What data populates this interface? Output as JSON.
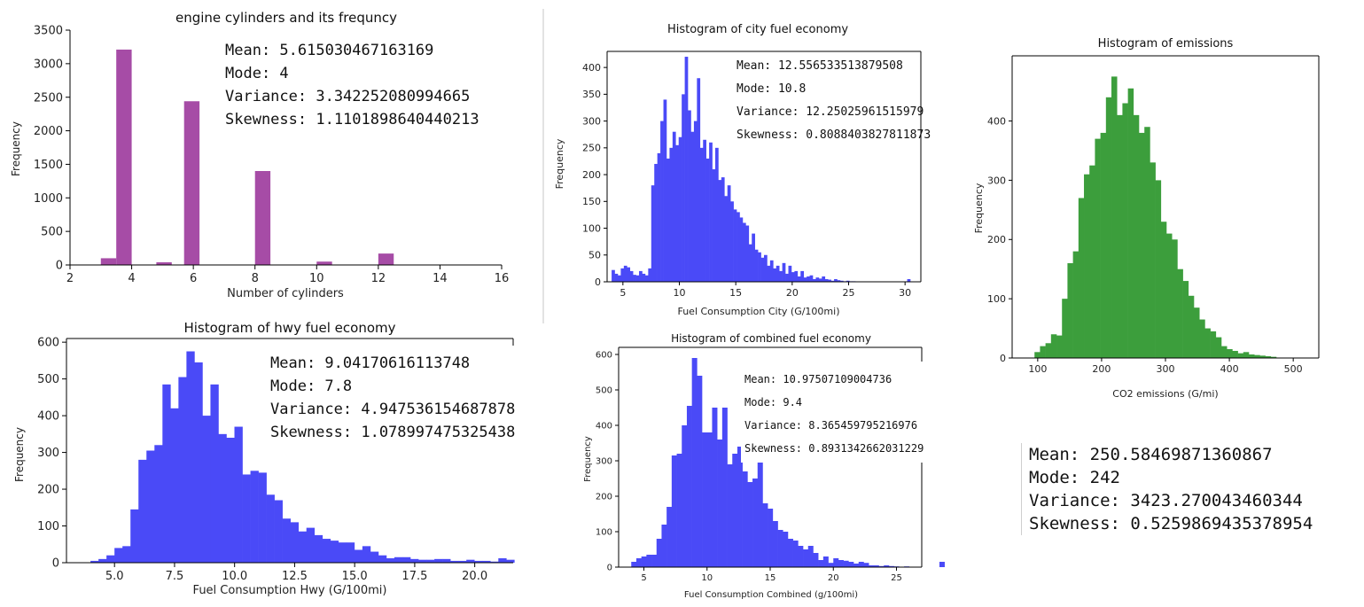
{
  "chart_data": [
    {
      "id": "cyl",
      "type": "bar",
      "title": "engine cylinders and its frequncy",
      "xlabel": "Number of cylinders",
      "ylabel": "Frequency",
      "xlim": [
        2,
        16
      ],
      "ylim": [
        0,
        3500
      ],
      "xticks": [
        2,
        4,
        6,
        8,
        10,
        12,
        14,
        16
      ],
      "yticks": [
        0,
        500,
        1000,
        1500,
        2000,
        2500,
        3000,
        3500
      ],
      "color": "#a64ca6",
      "bin_width": 0.5,
      "bars": [
        {
          "x": 3,
          "value": 100
        },
        {
          "x": 3.5,
          "value": 3210
        },
        {
          "x": 4.8,
          "value": 40
        },
        {
          "x": 5.7,
          "value": 2440
        },
        {
          "x": 8,
          "value": 1400
        },
        {
          "x": 10,
          "value": 50
        },
        {
          "x": 12,
          "value": 170
        }
      ],
      "stats": [
        "Mean: 5.615030467163169",
        "Mode: 4",
        "Variance: 3.342252080994665",
        "Skewness: 1.1101898640440213"
      ]
    },
    {
      "id": "city",
      "type": "bar",
      "title": "Histogram of city fuel economy",
      "xlabel": "Fuel Consumption City (G/100mi)",
      "ylabel": "Frequency",
      "xlim": [
        3.6,
        31.4
      ],
      "ylim": [
        0,
        430
      ],
      "xticks": [
        5,
        10,
        15,
        20,
        25,
        30
      ],
      "yticks": [
        0,
        50,
        100,
        150,
        200,
        250,
        300,
        350,
        400
      ],
      "color": "#4a4af7",
      "x_start": 4.0,
      "bin_width": 0.27,
      "values": [
        22,
        15,
        12,
        25,
        30,
        27,
        20,
        13,
        12,
        20,
        15,
        12,
        25,
        180,
        220,
        240,
        300,
        340,
        230,
        250,
        280,
        255,
        270,
        350,
        420,
        320,
        280,
        300,
        380,
        250,
        265,
        230,
        260,
        210,
        250,
        190,
        195,
        160,
        180,
        150,
        135,
        130,
        120,
        110,
        105,
        70,
        90,
        60,
        55,
        45,
        50,
        30,
        40,
        25,
        30,
        20,
        35,
        15,
        30,
        18,
        20,
        10,
        20,
        8,
        10,
        12,
        5,
        8,
        6,
        10,
        5,
        4,
        2,
        5,
        3,
        2,
        1,
        2,
        1,
        1,
        0,
        0,
        0,
        0,
        0,
        0,
        0,
        0,
        0,
        0,
        0,
        0,
        0,
        0,
        0,
        0,
        0,
        5,
        0,
        0
      ],
      "stats": [
        "Mean: 12.556533513879508",
        "Mode: 10.8",
        "Variance: 12.25025961515979",
        "Skewness: 0.8088403827811873"
      ]
    },
    {
      "id": "co2",
      "type": "bar",
      "title": "Histogram of emissions",
      "xlabel": "CO2 emissions (G/mi)",
      "ylabel": "Frequency",
      "xlim": [
        60,
        540
      ],
      "ylim": [
        0,
        510
      ],
      "xticks": [
        100,
        200,
        300,
        400,
        500
      ],
      "yticks": [
        0,
        100,
        200,
        300,
        400
      ],
      "color": "#3c9e3c",
      "x_start": 95,
      "bin_width": 8.6,
      "values": [
        10,
        20,
        25,
        40,
        38,
        100,
        160,
        180,
        270,
        310,
        325,
        370,
        380,
        440,
        475,
        410,
        430,
        455,
        410,
        380,
        390,
        330,
        300,
        230,
        210,
        200,
        150,
        130,
        105,
        85,
        65,
        50,
        45,
        35,
        20,
        15,
        12,
        8,
        10,
        6,
        5,
        4,
        3,
        2
      ],
      "stats": [
        "Mean: 250.58469871360867",
        "Mode: 242",
        "Variance: 3423.270043460344",
        "Skewness: 0.5259869435378954"
      ]
    },
    {
      "id": "hwy",
      "type": "bar",
      "title": "Histogram of hwy fuel economy",
      "xlabel": "Fuel Consumption Hwy (G/100mi)",
      "ylabel": "Frequency",
      "xlim": [
        3.0,
        21.6
      ],
      "ylim": [
        0,
        610
      ],
      "xticks": [
        5.0,
        7.5,
        10.0,
        12.5,
        15.0,
        17.5,
        20.0
      ],
      "xticklabels": [
        "5.0",
        "7.5",
        "10.0",
        "12.5",
        "15.0",
        "17.5",
        "20.0"
      ],
      "yticks": [
        0,
        100,
        200,
        300,
        400,
        500,
        600
      ],
      "color": "#4a4af7",
      "x_start": 4.0,
      "bin_width": 0.333,
      "values": [
        5,
        10,
        20,
        40,
        45,
        145,
        280,
        305,
        320,
        485,
        420,
        505,
        575,
        545,
        400,
        485,
        350,
        340,
        370,
        240,
        250,
        245,
        185,
        170,
        120,
        110,
        85,
        95,
        75,
        65,
        60,
        55,
        55,
        35,
        45,
        30,
        20,
        12,
        15,
        15,
        10,
        8,
        8,
        10,
        10,
        5,
        5,
        8,
        5,
        5,
        3,
        12,
        8
      ],
      "stats": [
        "Mean: 9.04170616113748",
        "Mode: 7.8",
        "Variance: 4.947536154687878",
        "Skewness: 1.078997475325438"
      ]
    },
    {
      "id": "comb",
      "type": "bar",
      "title": "Histogram of combined fuel economy",
      "xlabel": "Fuel Consumption Combined (g/100mi)",
      "ylabel": "Frequency",
      "xlim": [
        3.0,
        27.0
      ],
      "ylim": [
        0,
        620
      ],
      "xticks": [
        5,
        10,
        15,
        20,
        25
      ],
      "yticks": [
        0,
        100,
        200,
        300,
        400,
        500,
        600
      ],
      "color": "#4a4af7",
      "x_start": 4.0,
      "bin_width": 0.4,
      "values": [
        15,
        25,
        30,
        35,
        35,
        80,
        120,
        170,
        315,
        320,
        400,
        455,
        590,
        540,
        380,
        380,
        450,
        360,
        450,
        290,
        320,
        340,
        270,
        240,
        250,
        370,
        180,
        165,
        130,
        105,
        100,
        80,
        75,
        60,
        50,
        60,
        40,
        20,
        30,
        12,
        25,
        20,
        18,
        15,
        10,
        15,
        12,
        5,
        5,
        3,
        5,
        3,
        2,
        1,
        2,
        0,
        0,
        0,
        0,
        0,
        0,
        15
      ],
      "stats": [
        "Mean: 10.97507109004736",
        "Mode: 9.4",
        "Variance: 8.365459795216976",
        "Skewness: 0.8931342662031229"
      ]
    }
  ]
}
